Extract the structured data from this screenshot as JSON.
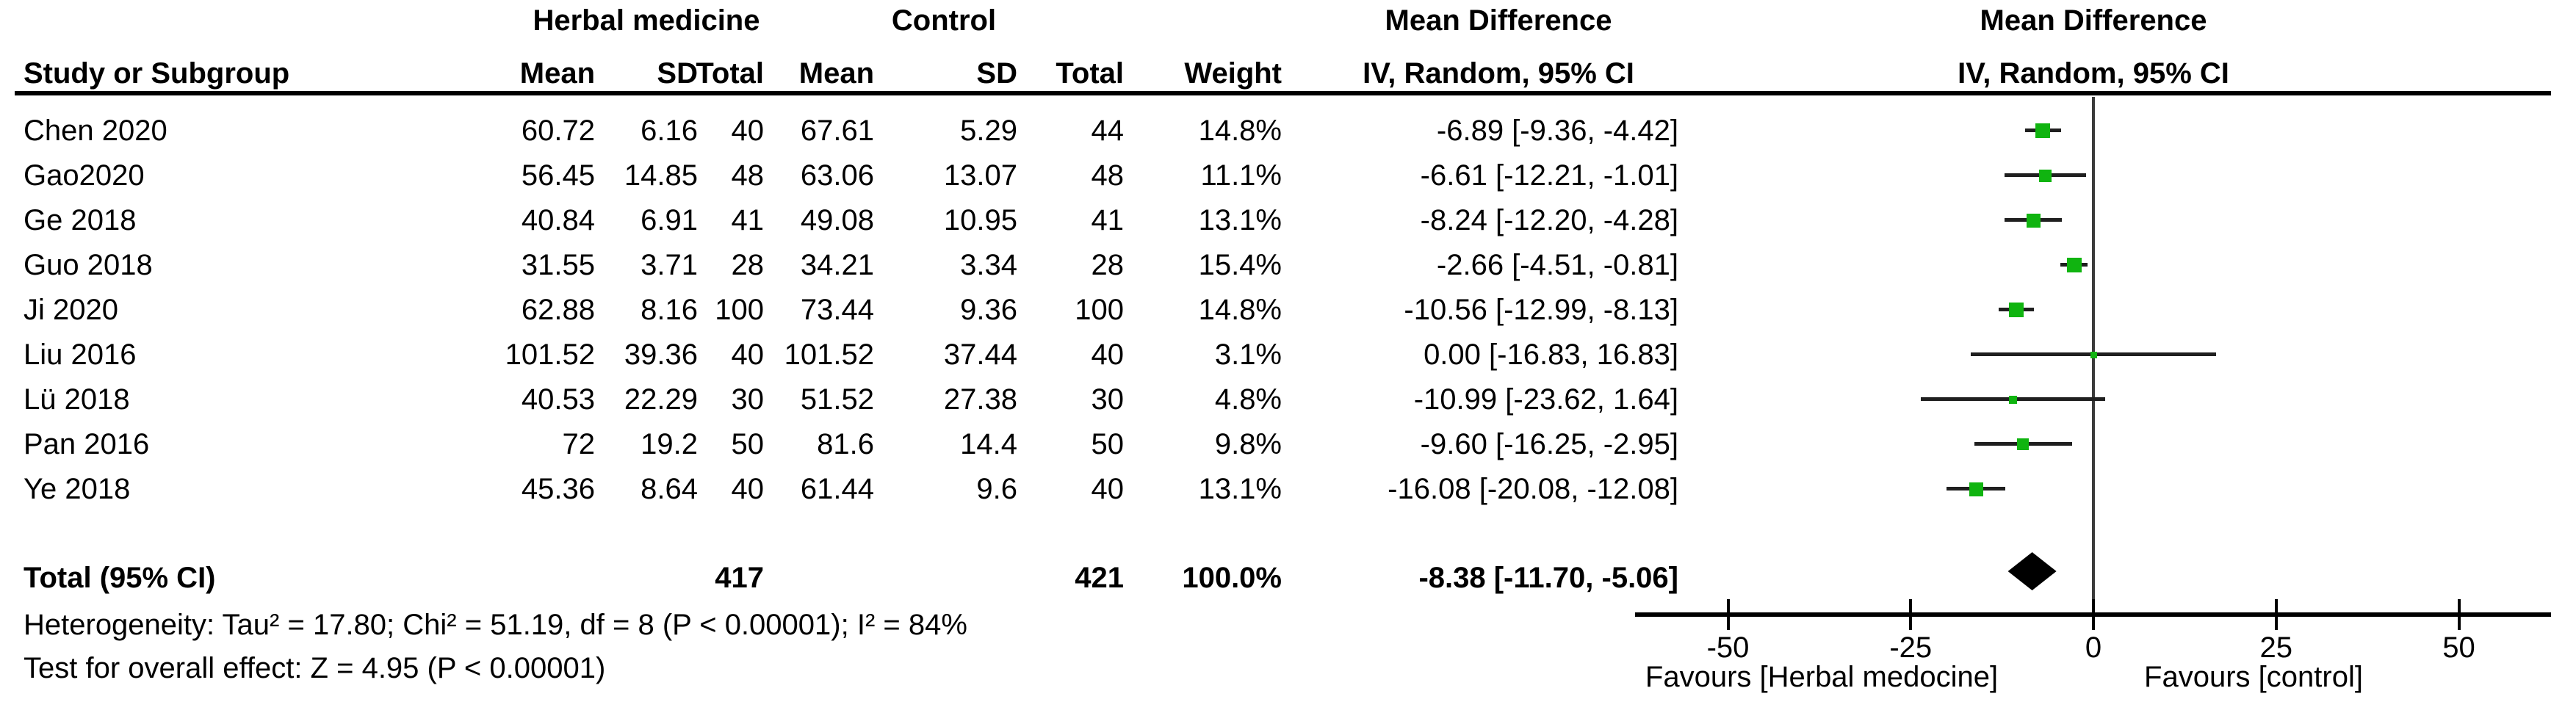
{
  "header": {
    "group1": "Herbal medicine",
    "group2": "Control",
    "study_col": "Study or Subgroup",
    "mean_col": "Mean",
    "sd_col": "SD",
    "total_col": "Total",
    "weight_col": "Weight",
    "effect_line1": "Mean Difference",
    "effect_line2": "IV, Random, 95% CI",
    "plot_line1": "Mean Difference",
    "plot_line2": "IV, Random, 95% CI"
  },
  "colors": {
    "marker_green": "#10b410",
    "whisker": "#1f1f1f",
    "zero_line": "#3a3a3a",
    "axis": "#000000",
    "text": "#000000"
  },
  "chart_data": {
    "type": "forest",
    "effect_label": "Mean Difference, IV, Random, 95% CI",
    "studies": [
      {
        "study": "Chen 2020",
        "treat_mean": "60.72",
        "treat_sd": "6.16",
        "treat_n": "40",
        "ctrl_mean": "67.61",
        "ctrl_sd": "5.29",
        "ctrl_n": "44",
        "weight": "14.8%",
        "weight_pct": 14.8,
        "md": -6.89,
        "ci_low": -9.36,
        "ci_high": -4.42,
        "ci_text": "-6.89 [-9.36, -4.42]"
      },
      {
        "study": "Gao2020",
        "treat_mean": "56.45",
        "treat_sd": "14.85",
        "treat_n": "48",
        "ctrl_mean": "63.06",
        "ctrl_sd": "13.07",
        "ctrl_n": "48",
        "weight": "11.1%",
        "weight_pct": 11.1,
        "md": -6.61,
        "ci_low": -12.21,
        "ci_high": -1.01,
        "ci_text": "-6.61 [-12.21, -1.01]"
      },
      {
        "study": "Ge 2018",
        "treat_mean": "40.84",
        "treat_sd": "6.91",
        "treat_n": "41",
        "ctrl_mean": "49.08",
        "ctrl_sd": "10.95",
        "ctrl_n": "41",
        "weight": "13.1%",
        "weight_pct": 13.1,
        "md": -8.24,
        "ci_low": -12.2,
        "ci_high": -4.28,
        "ci_text": "-8.24 [-12.20, -4.28]"
      },
      {
        "study": "Guo 2018",
        "treat_mean": "31.55",
        "treat_sd": "3.71",
        "treat_n": "28",
        "ctrl_mean": "34.21",
        "ctrl_sd": "3.34",
        "ctrl_n": "28",
        "weight": "15.4%",
        "weight_pct": 15.4,
        "md": -2.66,
        "ci_low": -4.51,
        "ci_high": -0.81,
        "ci_text": "-2.66 [-4.51, -0.81]"
      },
      {
        "study": "Ji 2020",
        "treat_mean": "62.88",
        "treat_sd": "8.16",
        "treat_n": "100",
        "ctrl_mean": "73.44",
        "ctrl_sd": "9.36",
        "ctrl_n": "100",
        "weight": "14.8%",
        "weight_pct": 14.8,
        "md": -10.56,
        "ci_low": -12.99,
        "ci_high": -8.13,
        "ci_text": "-10.56 [-12.99, -8.13]"
      },
      {
        "study": "Liu 2016",
        "treat_mean": "101.52",
        "treat_sd": "39.36",
        "treat_n": "40",
        "ctrl_mean": "101.52",
        "ctrl_sd": "37.44",
        "ctrl_n": "40",
        "weight": "3.1%",
        "weight_pct": 3.1,
        "md": 0.0,
        "ci_low": -16.83,
        "ci_high": 16.83,
        "ci_text": "0.00 [-16.83, 16.83]"
      },
      {
        "study": "Lü 2018",
        "treat_mean": "40.53",
        "treat_sd": "22.29",
        "treat_n": "30",
        "ctrl_mean": "51.52",
        "ctrl_sd": "27.38",
        "ctrl_n": "30",
        "weight": "4.8%",
        "weight_pct": 4.8,
        "md": -10.99,
        "ci_low": -23.62,
        "ci_high": 1.64,
        "ci_text": "-10.99 [-23.62, 1.64]"
      },
      {
        "study": "Pan 2016",
        "treat_mean": "72",
        "treat_sd": "19.2",
        "treat_n": "50",
        "ctrl_mean": "81.6",
        "ctrl_sd": "14.4",
        "ctrl_n": "50",
        "weight": "9.8%",
        "weight_pct": 9.8,
        "md": -9.6,
        "ci_low": -16.25,
        "ci_high": -2.95,
        "ci_text": "-9.60 [-16.25, -2.95]"
      },
      {
        "study": "Ye 2018",
        "treat_mean": "45.36",
        "treat_sd": "8.64",
        "treat_n": "40",
        "ctrl_mean": "61.44",
        "ctrl_sd": "9.6",
        "ctrl_n": "40",
        "weight": "13.1%",
        "weight_pct": 13.1,
        "md": -16.08,
        "ci_low": -20.08,
        "ci_high": -12.08,
        "ci_text": "-16.08 [-20.08, -12.08]"
      }
    ],
    "total": {
      "label": "Total (95% CI)",
      "treat_n": "417",
      "ctrl_n": "421",
      "weight": "100.0%",
      "md": -8.38,
      "ci_low": -11.7,
      "ci_high": -5.06,
      "ci_text": "-8.38 [-11.70, -5.06]"
    },
    "x_axis": {
      "ticks": [
        -50,
        -25,
        0,
        25,
        50
      ],
      "range": [
        -63,
        62
      ]
    },
    "favours_left": "Favours [Herbal medocine]",
    "favours_right": "Favours [control]",
    "footers": [
      "Heterogeneity: Tau² = 17.80; Chi² = 51.19, df = 8 (P < 0.00001); I² = 84%",
      "Test for overall effect: Z = 4.95 (P < 0.00001)"
    ]
  }
}
